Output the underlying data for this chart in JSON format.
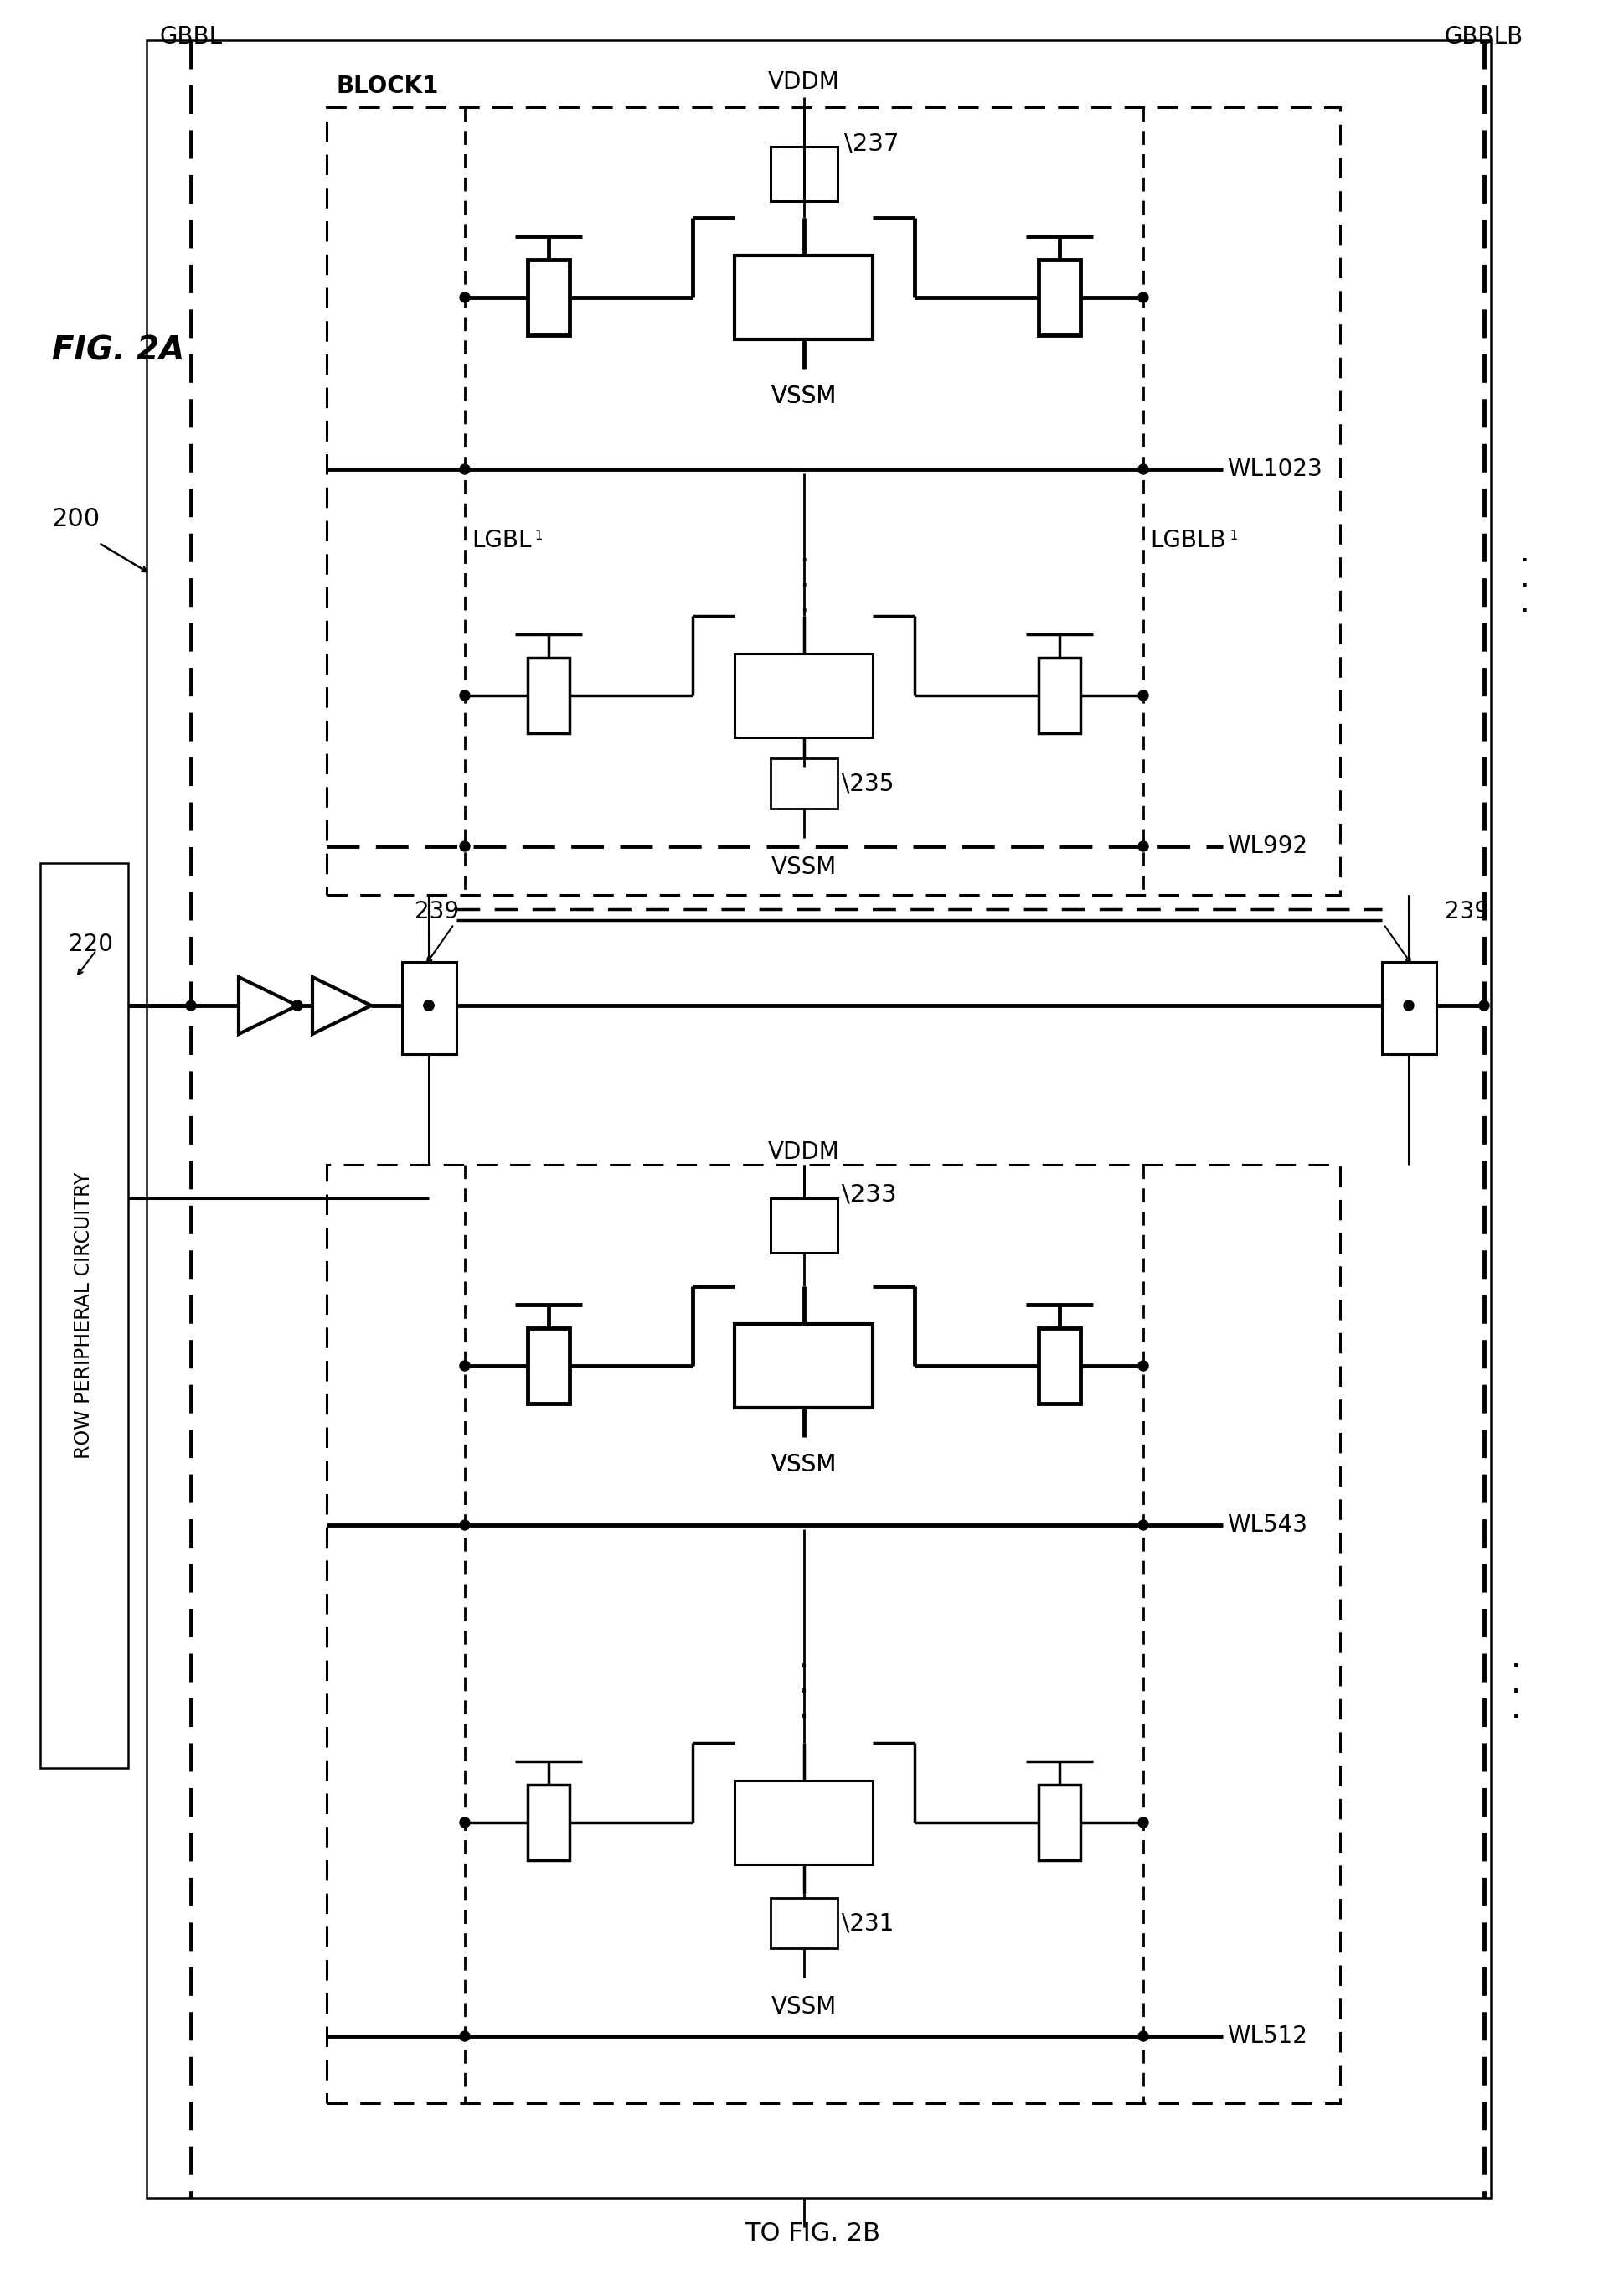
{
  "bg": "#ffffff",
  "fig_label": "FIG. 2A",
  "title_bottom": "TO FIG. 2B",
  "ref200": "200",
  "ref220": "220",
  "ref231": "231",
  "ref233": "233",
  "ref235": "235",
  "ref237": "237",
  "ref239": "239",
  "lbl_GBBL": "GBBL",
  "lbl_GBBLB": "GBBLB",
  "lbl_BLOCK1": "BLOCK1",
  "lbl_VDDM": "VDDM",
  "lbl_VSSM": "VSSM",
  "lbl_WL1023": "WL1023",
  "lbl_WL992": "WL992",
  "lbl_WL543": "WL543",
  "lbl_WL512": "WL512",
  "lbl_LGBL1": "LGBL",
  "lbl_LGBLB1": "LGBLB",
  "lbl_RPC": "ROW PERIPHERAL CIRCUITRY"
}
